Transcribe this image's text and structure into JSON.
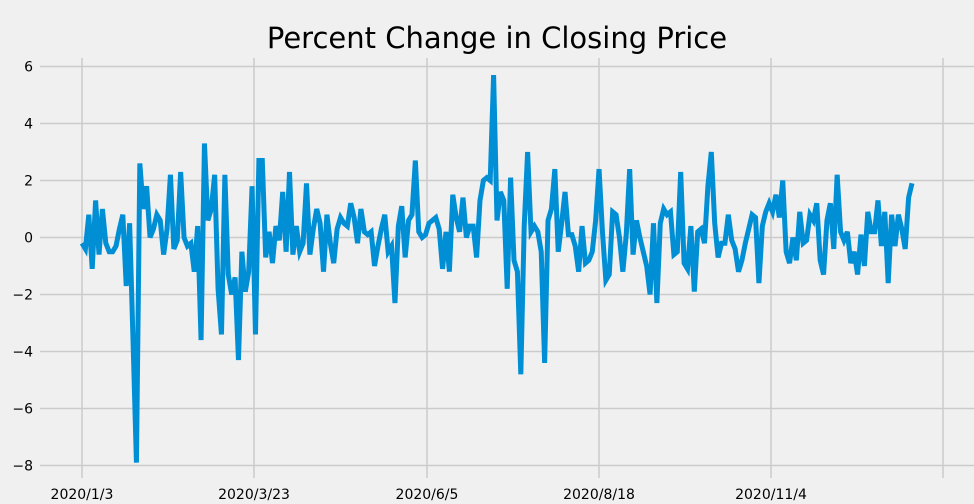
{
  "chart_data": {
    "type": "line",
    "title": "Percent Change in Closing Price",
    "xlabel": "",
    "ylabel": "",
    "x_ticks": [
      "2020/1/3",
      "2020/3/23",
      "2020/6/5",
      "2020/8/18",
      "2020/11/4"
    ],
    "y_ticks": [
      -8,
      -6,
      -4,
      -2,
      0,
      2,
      4,
      6
    ],
    "ylim": [
      -8.3,
      6.3
    ],
    "grid": true,
    "legend": "none",
    "colors": {
      "line": "#008fd5",
      "grid": "#cbcbcb",
      "background": "#f0f0f0",
      "text": "#000000"
    },
    "series": [
      {
        "values": [
          -0.2,
          -0.4,
          0.8,
          -1.1,
          1.3,
          -0.6,
          1.0,
          -0.2,
          -0.5,
          -0.5,
          -0.3,
          0.3,
          0.8,
          -1.7,
          0.5,
          -3.6,
          -7.9,
          2.6,
          1.0,
          1.8,
          0.0,
          0.3,
          0.8,
          0.6,
          -0.6,
          0.3,
          2.2,
          -0.4,
          -0.1,
          2.3,
          0.0,
          -0.3,
          -0.2,
          -1.2,
          0.4,
          -3.6,
          3.3,
          0.6,
          1.0,
          2.2,
          -1.8,
          -3.4,
          2.2,
          -1.3,
          -2.0,
          -1.4,
          -4.3,
          -0.5,
          -1.9,
          -1.2,
          1.8,
          -3.4,
          2.7,
          2.7,
          -0.7,
          0.2,
          -0.9,
          0.4,
          -0.1,
          1.6,
          -0.5,
          2.3,
          -0.6,
          0.4,
          -0.5,
          -0.2,
          1.9,
          -0.6,
          0.3,
          1.0,
          0.5,
          -1.2,
          0.8,
          -0.2,
          -0.9,
          0.3,
          0.7,
          0.5,
          0.4,
          1.2,
          0.7,
          -0.2,
          1.0,
          0.2,
          0.1,
          0.2,
          -1.0,
          -0.3,
          0.3,
          0.8,
          -0.5,
          -0.3,
          -2.3,
          0.4,
          1.1,
          -0.7,
          0.6,
          0.8,
          2.7,
          0.2,
          0.0,
          0.1,
          0.5,
          0.6,
          0.7,
          0.3,
          -1.1,
          0.2,
          -1.2,
          1.5,
          0.7,
          0.2,
          1.4,
          0.0,
          0.4,
          0.4,
          -0.7,
          1.3,
          2.0,
          2.1,
          2.0,
          5.7,
          0.6,
          1.6,
          1.3,
          -1.8,
          2.1,
          -0.8,
          -1.2,
          -4.8,
          0.4,
          3.0,
          0.2,
          0.4,
          0.2,
          -0.5,
          -4.4,
          0.6,
          1.0,
          2.4,
          -0.5,
          0.5,
          1.6,
          0.1,
          0.1,
          -0.3,
          -1.2,
          0.4,
          -0.9,
          -0.8,
          -0.5,
          0.6,
          2.4,
          0.2,
          -1.5,
          -1.3,
          0.9,
          0.8,
          0.0,
          -1.2,
          0.1,
          2.4,
          -0.6,
          0.6,
          0.0,
          -0.5,
          -1.0,
          -2.0,
          0.5,
          -2.3,
          0.5,
          1.0,
          0.8,
          0.9,
          -0.6,
          -0.5,
          2.3,
          -0.9,
          -1.1,
          0.4,
          -1.9,
          0.2,
          0.3,
          -0.2,
          1.8,
          3.0,
          0.5,
          -0.7,
          -0.2,
          -0.2,
          0.8,
          -0.1,
          -0.4,
          -1.2,
          -0.8,
          -0.2,
          0.3,
          0.8,
          0.7,
          -1.6,
          0.4,
          0.9,
          1.2,
          0.9,
          1.5,
          0.7,
          2.0,
          -0.5,
          -0.9,
          0.0,
          -0.8,
          0.9,
          -0.2,
          -0.1,
          0.8,
          0.6,
          1.2,
          -0.8,
          -1.3,
          0.6,
          1.2,
          -0.4,
          2.2,
          0.2,
          -0.1,
          0.2,
          -0.9,
          -0.5,
          -1.3,
          0.1,
          -1.0,
          0.9,
          0.2,
          0.2,
          1.3,
          -0.3,
          0.9,
          -1.6,
          0.8,
          -0.3,
          0.8,
          0.3,
          -0.4,
          1.4,
          1.9
        ]
      }
    ]
  }
}
